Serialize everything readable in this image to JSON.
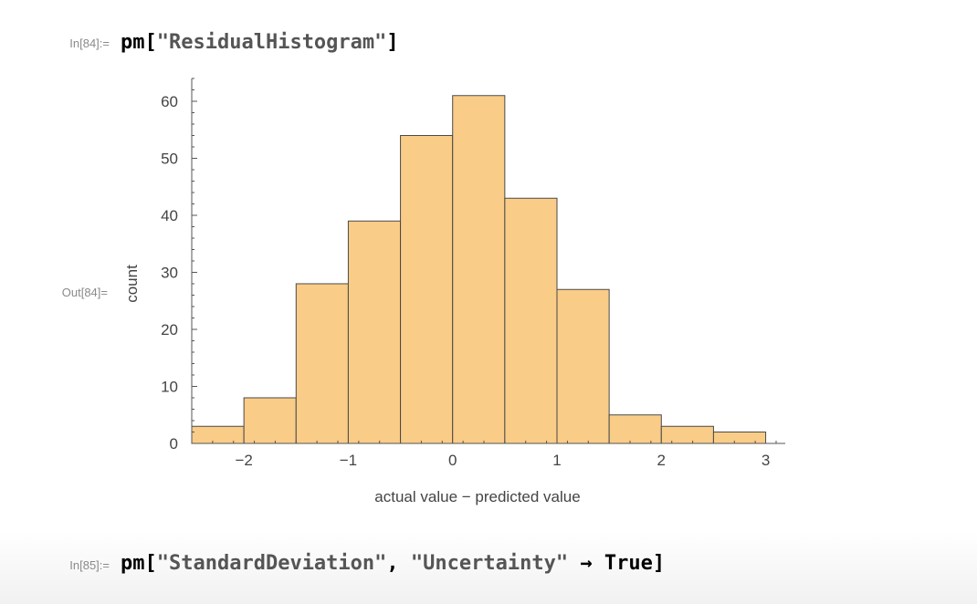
{
  "cells": {
    "in84": {
      "label": "In[84]:=",
      "func": "pm",
      "open": "[",
      "arg": "\"ResidualHistogram\"",
      "close": "]"
    },
    "out84": {
      "label": "Out[84]="
    },
    "in85": {
      "label": "In[85]:=",
      "func": "pm",
      "open": "[",
      "arg1": "\"StandardDeviation\"",
      "comma": ",",
      "arg2": "\"Uncertainty\"",
      "arrow": "→",
      "value": "True",
      "close": "]"
    }
  },
  "colors": {
    "bar_fill": "#f9cc87",
    "bar_stroke": "#4a4a4a",
    "axis": "#555555",
    "tick_label": "#444444"
  },
  "chart_data": {
    "type": "bar",
    "title": "",
    "xlabel": "actual value − predicted value",
    "ylabel": "count",
    "bin_edges": [
      -2.5,
      -2,
      -1.5,
      -1,
      -0.5,
      0,
      0.5,
      1,
      1.5,
      2,
      2.5,
      3
    ],
    "values": [
      3,
      8,
      28,
      39,
      54,
      61,
      43,
      27,
      5,
      3,
      2
    ],
    "xlim": [
      -2.5,
      3.1
    ],
    "ylim": [
      0,
      64
    ],
    "x_ticks": [
      -2,
      -1,
      0,
      1,
      2,
      3
    ],
    "x_tick_labels": [
      "−2",
      "−1",
      "0",
      "1",
      "2",
      "3"
    ],
    "y_ticks": [
      0,
      10,
      20,
      30,
      40,
      50,
      60
    ],
    "y_tick_labels": [
      "0",
      "10",
      "20",
      "30",
      "40",
      "50",
      "60"
    ],
    "grid": false,
    "legend": "none"
  }
}
